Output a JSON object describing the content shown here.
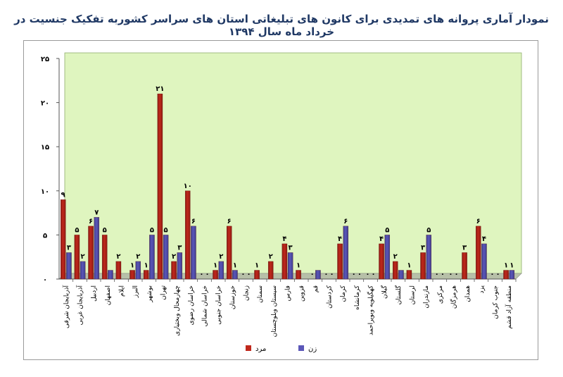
{
  "title": "نمودار آماری پروانه های تمدیدی برای کانون های تبلیغاتی استان های سراسر کشوربه تفکیک جنسیت در خرداد ماه سال ۱۳۹۴",
  "colors": {
    "men": "#c0281c",
    "women": "#5b57b8",
    "plot_bg": "#dff5bf",
    "floor": "#b7c0a8"
  },
  "chart_data": {
    "type": "bar",
    "title": "نمودار آماری پروانه های تمدیدی برای کانون های تبلیغاتی استان های سراسر کشوربه تفکیک جنسیت در خرداد ماه سال ۱۳۹۴",
    "xlabel": "",
    "ylabel": "",
    "ylim": [
      0,
      25
    ],
    "yticks": [
      0,
      5,
      10,
      15,
      20,
      25
    ],
    "ytick_labels": [
      "۰",
      "۵",
      "۱۰",
      "۱۵",
      "۲۰",
      "۲۵"
    ],
    "grid": false,
    "legend_position": "bottom",
    "categories": [
      "آذربایجان شرقی",
      "آذربایجان غربی",
      "اردبیل",
      "اصفهان",
      "ایلام",
      "البرز",
      "بوشهر",
      "تهران",
      "چهارمحال وبختیاری",
      "خراسان رضوی",
      "خراسان شمالی",
      "خراسان جنوبی",
      "خوزستان",
      "زنجان",
      "سمنان",
      "سیستان وبلوچستان",
      "فارس",
      "قزوین",
      "قم",
      "کردستان",
      "کرمان",
      "کرمانشاه",
      "کهگیلویه وبویراحمد",
      "گیلان",
      "گلستان",
      "لرستان",
      "مازندران",
      "مرکزی",
      "هرمزگان",
      "همدان",
      "یزد",
      "جنوب کرمان",
      "منطقه آزاد قشم"
    ],
    "series": [
      {
        "name": "مرد",
        "values": [
          9,
          5,
          6,
          5,
          2,
          1,
          1,
          21,
          2,
          10,
          0,
          1,
          6,
          0,
          1,
          2,
          4,
          1,
          0,
          0,
          4,
          0,
          0,
          4,
          2,
          1,
          3,
          0,
          0,
          3,
          6,
          0,
          1
        ],
        "labels": [
          "۹",
          "۵",
          "۶",
          "۵",
          "۲",
          "۱",
          "۱",
          "۲۱",
          "۲",
          "۱۰",
          "۰",
          "۱",
          "۶",
          "۰",
          "۱",
          "۲",
          "۴",
          "۱",
          "۰",
          "۰",
          "۴",
          "۰",
          "۰",
          "۴",
          "۲",
          "۱",
          "۳",
          "۰",
          "۰",
          "۳",
          "۶",
          "۰",
          "۱"
        ]
      },
      {
        "name": "زن",
        "values": [
          3,
          2,
          7,
          1,
          0,
          2,
          5,
          5,
          3,
          6,
          0,
          2,
          1,
          0,
          0,
          0,
          3,
          0,
          1,
          0,
          6,
          0,
          0,
          5,
          1,
          0,
          5,
          0,
          0,
          0,
          4,
          0,
          1
        ],
        "labels": [
          "۳",
          "۲",
          "۷",
          "",
          "",
          "۲",
          "۵",
          "۵",
          "۳",
          "۶",
          "۰",
          "۲",
          "۱",
          "۰",
          "",
          "",
          "۳",
          "",
          "",
          "۰",
          "۶",
          "۰",
          "۰",
          "۵",
          "",
          "",
          "۵",
          "۰",
          "۰",
          "",
          "۴",
          "۰",
          "۱"
        ]
      }
    ]
  }
}
